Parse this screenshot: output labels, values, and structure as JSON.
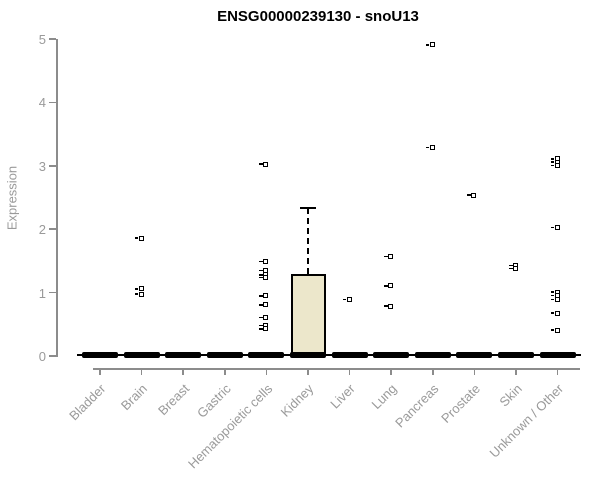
{
  "title": "ENSG00000239130 - snoU13",
  "chart_data": {
    "type": "boxplot",
    "title": "ENSG00000239130 - snoU13",
    "xlabel": "",
    "ylabel": "Expression",
    "ylim": [
      0,
      5
    ],
    "yticks": [
      0,
      1,
      2,
      3,
      4,
      5
    ],
    "grid": false,
    "legend": "none",
    "categories": [
      "Bladder",
      "Brain",
      "Breast",
      "Gastric",
      "Hematopoietic cells",
      "Kidney",
      "Liver",
      "Lung",
      "Pancreas",
      "Prostate",
      "Skin",
      "Unknown / Other"
    ],
    "series": [
      {
        "category": "Bladder",
        "median": 0,
        "q1": 0,
        "q3": 0,
        "whisker_low": 0,
        "whisker_high": 0,
        "outliers": []
      },
      {
        "category": "Brain",
        "median": 0,
        "q1": 0,
        "q3": 0,
        "whisker_low": 0,
        "whisker_high": 0,
        "outliers": [
          1.85,
          1.05,
          0.97
        ]
      },
      {
        "category": "Breast",
        "median": 0,
        "q1": 0,
        "q3": 0,
        "whisker_low": 0,
        "whisker_high": 0,
        "outliers": []
      },
      {
        "category": "Gastric",
        "median": 0,
        "q1": 0,
        "q3": 0,
        "whisker_low": 0,
        "whisker_high": 0,
        "outliers": []
      },
      {
        "category": "Hematopoietic cells",
        "median": 0,
        "q1": 0,
        "q3": 0,
        "whisker_low": 0,
        "whisker_high": 0,
        "outliers": [
          3.02,
          1.48,
          1.34,
          1.27,
          1.23,
          0.94,
          0.8,
          0.6,
          0.47,
          0.42
        ]
      },
      {
        "category": "Kidney",
        "median": 0,
        "q1": 0,
        "q3": 1.29,
        "whisker_low": 0,
        "whisker_high": 2.33,
        "outliers": []
      },
      {
        "category": "Liver",
        "median": 0,
        "q1": 0,
        "q3": 0,
        "whisker_low": 0,
        "whisker_high": 0,
        "outliers": [
          0.88
        ]
      },
      {
        "category": "Lung",
        "median": 0,
        "q1": 0,
        "q3": 0,
        "whisker_low": 0,
        "whisker_high": 0,
        "outliers": [
          1.56,
          1.1,
          0.78
        ]
      },
      {
        "category": "Pancreas",
        "median": 0,
        "q1": 0,
        "q3": 0,
        "whisker_low": 0,
        "whisker_high": 0,
        "outliers": [
          4.9,
          3.28
        ]
      },
      {
        "category": "Prostate",
        "median": 0,
        "q1": 0,
        "q3": 0,
        "whisker_low": 0,
        "whisker_high": 0,
        "outliers": [
          2.53
        ]
      },
      {
        "category": "Skin",
        "median": 0,
        "q1": 0,
        "q3": 0,
        "whisker_low": 0,
        "whisker_high": 0,
        "outliers": [
          1.42,
          1.37
        ]
      },
      {
        "category": "Unknown / Other",
        "median": 0,
        "q1": 0,
        "q3": 0,
        "whisker_low": 0,
        "whisker_high": 0,
        "outliers": [
          3.1,
          3.05,
          3.0,
          2.02,
          1.0,
          0.95,
          0.88,
          0.67,
          0.4
        ]
      }
    ],
    "colors": {
      "box_fill": "#ece7cb",
      "box_border": "#000000",
      "point": "#000000",
      "axis": "#8c8c8c",
      "tick_label": "#9a9a9a",
      "title": "#000000",
      "background": "#ffffff"
    }
  }
}
